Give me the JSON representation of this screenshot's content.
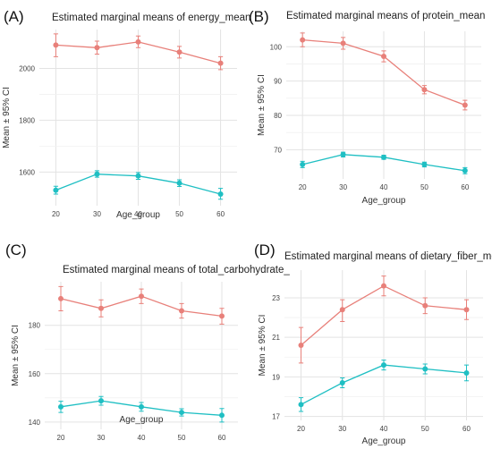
{
  "chart_data": [
    {
      "panel": "(A)",
      "type": "line",
      "title": "Estimated marginal means of energy_mean",
      "xlabel": "Age_group",
      "ylabel": "Mean ± 95% CI",
      "x": [
        20,
        30,
        40,
        50,
        60
      ],
      "xticks": [
        20,
        30,
        40,
        50,
        60
      ],
      "yticks": [
        1600,
        1800,
        2000
      ],
      "ylim": [
        1470,
        2150
      ],
      "grid": true,
      "legend": "none",
      "series": [
        {
          "color": "#E8807A",
          "values": [
            2090,
            2080,
            2102,
            2063,
            2020
          ],
          "ci_low": [
            2045,
            2055,
            2080,
            2040,
            1995
          ],
          "ci_high": [
            2133,
            2105,
            2125,
            2085,
            2045
          ]
        },
        {
          "color": "#1FBFC3",
          "values": [
            1530,
            1592,
            1585,
            1557,
            1515
          ],
          "ci_low": [
            1515,
            1580,
            1572,
            1544,
            1495
          ],
          "ci_high": [
            1545,
            1605,
            1598,
            1570,
            1537
          ]
        }
      ]
    },
    {
      "panel": "(B)",
      "type": "line",
      "title": "Estimated marginal means of protein_mean",
      "xlabel": "Age_group",
      "ylabel": "Mean ± 95% CI",
      "x": [
        20,
        30,
        40,
        50,
        60
      ],
      "xticks": [
        20,
        30,
        40,
        50,
        60
      ],
      "yticks": [
        70,
        80,
        90,
        100
      ],
      "ylim": [
        61.5,
        104.5
      ],
      "grid": true,
      "legend": "none",
      "series": [
        {
          "color": "#E8807A",
          "values": [
            102.0,
            101.0,
            97.2,
            87.5,
            83.0
          ],
          "ci_low": [
            100.0,
            99.3,
            95.6,
            86.3,
            81.6
          ],
          "ci_high": [
            104.0,
            102.7,
            98.8,
            88.7,
            84.4
          ]
        },
        {
          "color": "#1FBFC3",
          "values": [
            65.7,
            68.6,
            67.8,
            65.7,
            63.9
          ],
          "ci_low": [
            64.8,
            67.9,
            67.2,
            65.0,
            63.0
          ],
          "ci_high": [
            66.6,
            69.3,
            68.4,
            66.4,
            64.8
          ]
        }
      ]
    },
    {
      "panel": "(C)",
      "type": "line",
      "title": "Estimated marginal means of total_carbohydrate_",
      "xlabel": "Age_group",
      "ylabel": "Mean ± 95% CI",
      "x": [
        20,
        30,
        40,
        50,
        60
      ],
      "xticks": [
        20,
        30,
        40,
        50,
        60
      ],
      "yticks": [
        140,
        160,
        180
      ],
      "ylim": [
        137,
        198
      ],
      "grid": true,
      "legend": "none",
      "series": [
        {
          "color": "#E8807A",
          "values": [
            191.0,
            187.0,
            192.0,
            186.0,
            183.8
          ],
          "ci_low": [
            186.0,
            183.5,
            189.0,
            183.0,
            180.5
          ],
          "ci_high": [
            196.0,
            190.5,
            195.0,
            189.0,
            187.0
          ]
        },
        {
          "color": "#1FBFC3",
          "values": [
            146.3,
            148.8,
            146.3,
            144.0,
            142.8
          ],
          "ci_low": [
            144.0,
            147.0,
            144.5,
            142.5,
            140.0
          ],
          "ci_high": [
            148.6,
            150.6,
            148.1,
            145.5,
            145.6
          ]
        }
      ]
    },
    {
      "panel": "(D)",
      "type": "line",
      "title": "Estimated marginal means of dietary_fiber_mean",
      "xlabel": "Age_group",
      "ylabel": "Mean ± 95% CI",
      "x": [
        20,
        30,
        40,
        50,
        60
      ],
      "xticks": [
        20,
        30,
        40,
        50,
        60
      ],
      "yticks": [
        17,
        19,
        21,
        23
      ],
      "ylim": [
        16.8,
        24.4
      ],
      "grid": true,
      "legend": "none",
      "series": [
        {
          "color": "#E8807A",
          "values": [
            20.6,
            22.4,
            23.6,
            22.6,
            22.4
          ],
          "ci_low": [
            19.7,
            21.8,
            23.1,
            22.2,
            21.9
          ],
          "ci_high": [
            21.5,
            22.9,
            24.1,
            23.0,
            22.9
          ]
        },
        {
          "color": "#1FBFC3",
          "values": [
            17.6,
            18.7,
            19.6,
            19.4,
            19.2
          ],
          "ci_low": [
            17.25,
            18.45,
            19.35,
            19.15,
            18.8
          ],
          "ci_high": [
            17.95,
            18.95,
            19.85,
            19.65,
            19.6
          ]
        }
      ]
    }
  ]
}
